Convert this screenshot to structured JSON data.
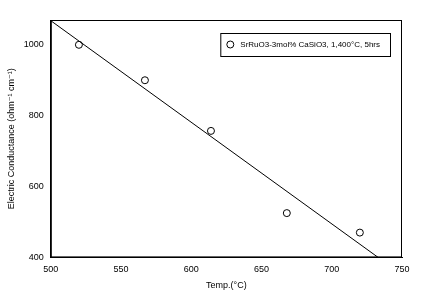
{
  "chart_data": {
    "type": "scatter",
    "x_label": "Temp.(°C)",
    "y_label": "Electric Conductance (ohm⁻¹ cm⁻¹)",
    "series": [
      {
        "name": "SrRuO3-3mol% CaSiO3, 1,400°C, 5hrs",
        "type": "scatter",
        "marker": "circle",
        "color": "#000000",
        "x": [
          520,
          567,
          614,
          668,
          720
        ],
        "values": [
          1000,
          900,
          757,
          525,
          470
        ]
      },
      {
        "type": "line",
        "line_style": "solid",
        "color": "#000000",
        "x": [
          500,
          733
        ],
        "values": [
          1068,
          400
        ]
      }
    ],
    "xlim": [
      500,
      750
    ],
    "xticks": [
      500,
      550,
      600,
      650,
      700,
      750
    ],
    "ylim": [
      400,
      1070
    ],
    "yticks": [
      400,
      600,
      800,
      1000
    ],
    "grid": false,
    "legend": "upper right"
  }
}
